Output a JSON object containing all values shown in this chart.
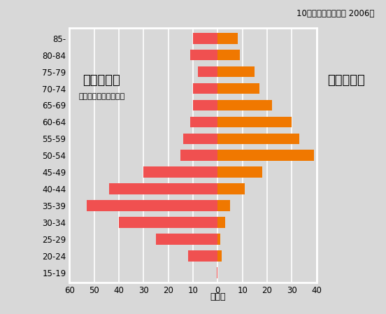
{
  "age_groups": [
    "15-19",
    "20-24",
    "25-29",
    "30-34",
    "35-39",
    "40-44",
    "45-49",
    "50-54",
    "55-59",
    "60-64",
    "65-69",
    "70-74",
    "75-79",
    "80-84",
    "85-"
  ],
  "cervix_values": [
    0.3,
    12,
    25,
    40,
    53,
    44,
    30,
    15,
    14,
    11,
    10,
    10,
    8,
    11,
    10
  ],
  "uterus_values": [
    0,
    1.5,
    1,
    3,
    5,
    11,
    18,
    39,
    33,
    30,
    22,
    17,
    15,
    9,
    8
  ],
  "cervix_color": "#f05050",
  "uterus_color": "#f07800",
  "bg_color": "#d8d8d8",
  "plot_bg_color": "#d8d8d8",
  "title": "10万人あたりの人数 2006年",
  "xlabel": "（歳）",
  "left_label": "子宮頸がん",
  "left_sublabel": "（上皮内がんを含む）",
  "right_label": "子宮体がん",
  "xlim_left": 60,
  "xlim_right": 40,
  "frame_color": "#ffffff",
  "grid_color": "#ffffff"
}
